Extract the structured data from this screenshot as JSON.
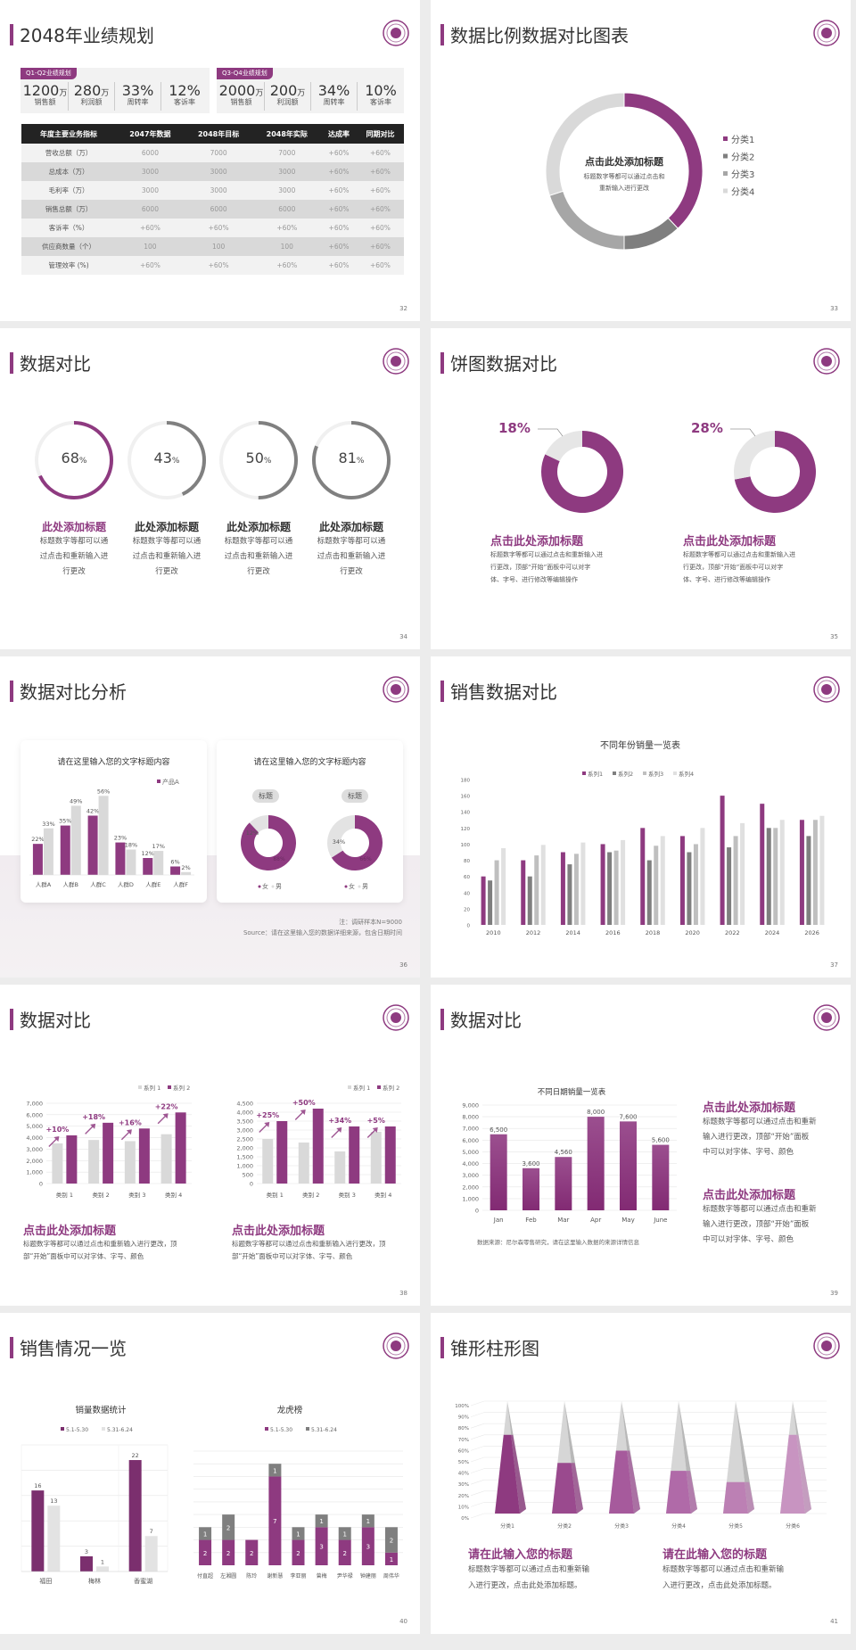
{
  "colors": {
    "purple": "#8e3a80",
    "dark_gray": "#7f7f7f",
    "mid_gray": "#a6a6a6",
    "light_gray": "#d9d9d9",
    "bg": "#ececec"
  },
  "s32": {
    "title": "2048年业绩规划",
    "page": "32",
    "kpi_groups": [
      {
        "badge": "Q1-Q2业绩规划",
        "items": [
          {
            "value": "1200",
            "unit": "万",
            "label": "销售额"
          },
          {
            "value": "280",
            "unit": "万",
            "label": "利润额"
          },
          {
            "value": "33%",
            "unit": "",
            "label": "周转率"
          },
          {
            "value": "12%",
            "unit": "",
            "label": "客诉率"
          }
        ]
      },
      {
        "badge": "Q3-Q4业绩规划",
        "items": [
          {
            "value": "2000",
            "unit": "万",
            "label": "销售额"
          },
          {
            "value": "200",
            "unit": "万",
            "label": "利润额"
          },
          {
            "value": "34%",
            "unit": "",
            "label": "周转率"
          },
          {
            "value": "10%",
            "unit": "",
            "label": "客诉率"
          }
        ]
      }
    ],
    "table": {
      "headers": [
        "年度主要业务指标",
        "2047年数据",
        "2048年目标",
        "2048年实际",
        "达成率",
        "同期对比"
      ],
      "rows": [
        [
          "营收总额（万）",
          "6000",
          "7000",
          "7000",
          "+60%",
          "+60%"
        ],
        [
          "总成本（万）",
          "3000",
          "3000",
          "3000",
          "+60%",
          "+60%"
        ],
        [
          "毛利率（万）",
          "3000",
          "3000",
          "3000",
          "+60%",
          "+60%"
        ],
        [
          "销售总额（万）",
          "6000",
          "6000",
          "6000",
          "+60%",
          "+60%"
        ],
        [
          "客诉率（%）",
          "+60%",
          "+60%",
          "+60%",
          "+60%",
          "+60%"
        ],
        [
          "供应商数量（个）",
          "100",
          "100",
          "100",
          "+60%",
          "+60%"
        ],
        [
          "管理效率 (%)",
          "+60%",
          "+60%",
          "+60%",
          "+60%",
          "+60%"
        ]
      ]
    }
  },
  "s33": {
    "title": "数据比例数据对比图表",
    "page": "33",
    "center_title": "点击此处添加标题",
    "center_body": [
      "标题数字等都可以通过点击和",
      "重新输入进行更改"
    ]
  },
  "s34": {
    "title": "数据对比",
    "page": "34",
    "items": [
      {
        "value": 68,
        "label": "68",
        "unit": "%",
        "heading": "此处添加标题",
        "body": [
          "标题数字等都可以通",
          "过点击和重新输入进",
          "行更改"
        ]
      },
      {
        "value": 43,
        "label": "43",
        "unit": "%",
        "heading": "此处添加标题",
        "body": [
          "标题数字等都可以通",
          "过点击和重新输入进",
          "行更改"
        ]
      },
      {
        "value": 50,
        "label": "50",
        "unit": "%",
        "heading": "此处添加标题",
        "body": [
          "标题数字等都可以通",
          "过点击和重新输入进",
          "行更改"
        ]
      },
      {
        "value": 81,
        "label": "81",
        "unit": "%",
        "heading": "此处添加标题",
        "body": [
          "标题数字等都可以通",
          "过点击和重新输入进",
          "行更改"
        ]
      }
    ]
  },
  "s35": {
    "title": "饼图数据对比",
    "page": "35",
    "items": [
      {
        "value": 18,
        "label": "18%",
        "heading": "点击此处添加标题",
        "body": [
          "标题数字等都可以通过点击和重新输入进",
          "行更改，顶部“开始”面板中可以对字",
          "体、字号、进行修改等编辑操作"
        ]
      },
      {
        "value": 28,
        "label": "28%",
        "heading": "点击此处添加标题",
        "body": [
          "标题数字等都可以通过点击和重新输入进",
          "行更改，顶部“开始”面板中可以对字",
          "体、字号、进行修改等编辑操作"
        ]
      }
    ]
  },
  "s36": {
    "title": "数据对比分析",
    "page": "36",
    "card_title_left": "请在这里输入您的文字标题内容",
    "card_title_right": "请在这里输入您的文字标题内容",
    "donut_tags": [
      "标题",
      "标题"
    ],
    "note": "注：调研样本N=9000",
    "source": "Source：请在这里输入您的数据详细来源，包含日期时间"
  },
  "s37": {
    "title": "销售数据对比",
    "page": "37"
  },
  "s38": {
    "title": "数据对比",
    "page": "38",
    "blocks": [
      {
        "heading": "点击此处添加标题",
        "body": [
          "标题数字等都可以通过点击和重新输入进行更改，顶",
          "部“开始”面板中可以对字体、字号、颜色"
        ]
      },
      {
        "heading": "点击此处添加标题",
        "body": [
          "标题数字等都可以通过点击和重新输入进行更改，顶",
          "部“开始”面板中可以对字体、字号、颜色"
        ]
      }
    ]
  },
  "s39": {
    "title": "数据对比",
    "page": "39",
    "source": "数据来源：尼尔森零售研究，请在这里输入数据的来源详情信息",
    "blocks": [
      {
        "heading": "点击此处添加标题",
        "body": [
          "标题数字等都可以通过点击和重新",
          "输入进行更改，顶部“开始”面板",
          "中可以对字体、字号、颜色"
        ]
      },
      {
        "heading": "点击此处添加标题",
        "body": [
          "标题数字等都可以通过点击和重新",
          "输入进行更改，顶部“开始”面板",
          "中可以对字体、字号、颜色"
        ]
      }
    ]
  },
  "s40": {
    "title": "销售情况一览",
    "page": "40"
  },
  "s41": {
    "title": "锥形柱形图",
    "page": "41",
    "blocks": [
      {
        "heading": "请在此输入您的标题",
        "body": [
          "标题数字等都可以通过点击和重新输",
          "入进行更改，点击此处添加标题。"
        ]
      },
      {
        "heading": "请在此输入您的标题",
        "body": [
          "标题数字等都可以通过点击和重新输",
          "入进行更改，点击此处添加标题。"
        ]
      }
    ]
  },
  "chart_data": [
    {
      "id": "s33",
      "type": "pie",
      "donut": true,
      "categories": [
        "分类1",
        "分类2",
        "分类3",
        "分类4"
      ],
      "values": [
        38,
        12,
        20,
        30
      ],
      "colors": [
        "#8e3a80",
        "#7f7f7f",
        "#a6a6a6",
        "#d9d9d9"
      ],
      "legend": "right"
    },
    {
      "id": "s34",
      "type": "pie",
      "donut": true,
      "values": [
        68,
        43,
        50,
        81
      ],
      "unit": "%"
    },
    {
      "id": "s35",
      "type": "pie",
      "donut": true,
      "values": [
        18,
        28
      ],
      "unit": "%"
    },
    {
      "id": "s36-bar",
      "type": "bar",
      "categories": [
        "人群A",
        "人群B",
        "人群C",
        "人群D",
        "人群E",
        "人群F"
      ],
      "series": [
        {
          "name": "产品A",
          "values": [
            22,
            35,
            42,
            23,
            12,
            6
          ],
          "color": "#8e3a80"
        },
        {
          "values": [
            33,
            49,
            56,
            18,
            17,
            2
          ],
          "color": "#d9d9d9"
        }
      ],
      "value_suffix": "%",
      "legend": "top-right",
      "ylim": [
        0,
        60
      ]
    },
    {
      "id": "s36-donuts",
      "type": "pie",
      "donut": true,
      "legend_labels": [
        "女",
        "男"
      ],
      "charts": [
        {
          "values": [
            88,
            12
          ],
          "labels": [
            "88%",
            "12%"
          ]
        },
        {
          "values": [
            66,
            34
          ],
          "labels": [
            "66%",
            "34%"
          ]
        }
      ]
    },
    {
      "id": "s37",
      "type": "bar",
      "title": "不同年份销量一览表",
      "categories": [
        "2010",
        "2012",
        "2014",
        "2016",
        "2018",
        "2020",
        "2022",
        "2024",
        "2026"
      ],
      "series": [
        {
          "name": "系列1",
          "values": [
            60,
            80,
            90,
            100,
            120,
            110,
            160,
            150,
            130
          ],
          "color": "#8e3a80"
        },
        {
          "name": "系列2",
          "values": [
            55,
            60,
            75,
            90,
            80,
            90,
            96,
            120,
            110
          ],
          "color": "#7f7f7f"
        },
        {
          "name": "系列3",
          "values": [
            80,
            86,
            88,
            92,
            98,
            100,
            110,
            120,
            130
          ],
          "color": "#bfbfbf"
        },
        {
          "name": "系列4",
          "values": [
            95,
            99,
            102,
            105,
            110,
            120,
            126,
            130,
            135
          ],
          "color": "#e0e0e0"
        }
      ],
      "ylim": [
        0,
        180
      ],
      "yticks": [
        0,
        20,
        40,
        60,
        80,
        100,
        120,
        140,
        160,
        180
      ],
      "legend": "top"
    },
    {
      "id": "s38-left",
      "type": "bar",
      "categories": [
        "类别 1",
        "类别 2",
        "类别 3",
        "类别 4"
      ],
      "series": [
        {
          "name": "系列 1",
          "values": [
            3500,
            3800,
            3700,
            4300
          ],
          "color": "#d9d9d9"
        },
        {
          "name": "系列 2",
          "values": [
            4200,
            5300,
            4800,
            6200
          ],
          "color": "#8e3a80"
        }
      ],
      "annotations": [
        "+10%",
        "+18%",
        "+16%",
        "+22%"
      ],
      "ylim": [
        0,
        7000
      ],
      "yticks": [
        0,
        1000,
        2000,
        3000,
        4000,
        5000,
        6000,
        7000
      ],
      "legend": "top-right"
    },
    {
      "id": "s38-right",
      "type": "bar",
      "categories": [
        "类别 1",
        "类别 2",
        "类别 3",
        "类别 4"
      ],
      "series": [
        {
          "name": "系列 1",
          "values": [
            2500,
            2300,
            1800,
            2900
          ],
          "color": "#d9d9d9"
        },
        {
          "name": "系列 2",
          "values": [
            3500,
            4200,
            3200,
            3200
          ],
          "color": "#8e3a80"
        }
      ],
      "annotations": [
        "+25%",
        "+50%",
        "+34%",
        "+5%"
      ],
      "ylim": [
        0,
        4500
      ],
      "yticks": [
        0,
        500,
        1000,
        1500,
        2000,
        2500,
        3000,
        3500,
        4000,
        4500
      ],
      "legend": "top-right"
    },
    {
      "id": "s39",
      "type": "bar",
      "title": "不同日期销量一览表",
      "categories": [
        "Jan",
        "Feb",
        "Mar",
        "Apr",
        "May",
        "June"
      ],
      "values": [
        6500,
        3600,
        4560,
        8000,
        7600,
        5600
      ],
      "ylim": [
        0,
        9000
      ],
      "yticks": [
        0,
        1000,
        2000,
        3000,
        4000,
        5000,
        6000,
        7000,
        8000,
        9000
      ]
    },
    {
      "id": "s40-left",
      "type": "bar",
      "title": "销量数据统计",
      "categories": [
        "福田",
        "梅林",
        "香蜜湖"
      ],
      "series": [
        {
          "name": "5.1-5.30",
          "values": [
            16,
            3,
            22
          ],
          "color": "#7b2f6e"
        },
        {
          "name": "5.31-6.24",
          "values": [
            13,
            1,
            7
          ],
          "color": "#e3e3e3"
        }
      ],
      "ylim": [
        0,
        25
      ],
      "legend": "top"
    },
    {
      "id": "s40-right",
      "type": "bar",
      "stacked": true,
      "title": "龙虎榜",
      "categories": [
        "付直超",
        "左湘圆",
        "陈玲",
        "谢新慧",
        "李亚丽",
        "曾梅",
        "尹华禄",
        "钟建丽",
        "周伟华"
      ],
      "series": [
        {
          "name": "5.1-5.30",
          "values": [
            2,
            2,
            2,
            7,
            2,
            3,
            2,
            3,
            1
          ],
          "color": "#8e3a80"
        },
        {
          "name": "5.31-6.24",
          "values": [
            1,
            2,
            0,
            1,
            1,
            1,
            1,
            1,
            2
          ],
          "color": "#7f7f7f"
        }
      ],
      "ylim": [
        0,
        9
      ],
      "legend": "top"
    },
    {
      "id": "s41",
      "type": "bar",
      "shape": "cone",
      "categories": [
        "分类1",
        "分类2",
        "分类3",
        "分类4",
        "分类5",
        "分类6"
      ],
      "values": [
        70,
        45,
        56,
        38,
        28,
        70
      ],
      "ylim": [
        0,
        100
      ],
      "yticks": [
        "0%",
        "10%",
        "20%",
        "30%",
        "40%",
        "50%",
        "60%",
        "70%",
        "80%",
        "90%",
        "100%"
      ]
    }
  ]
}
